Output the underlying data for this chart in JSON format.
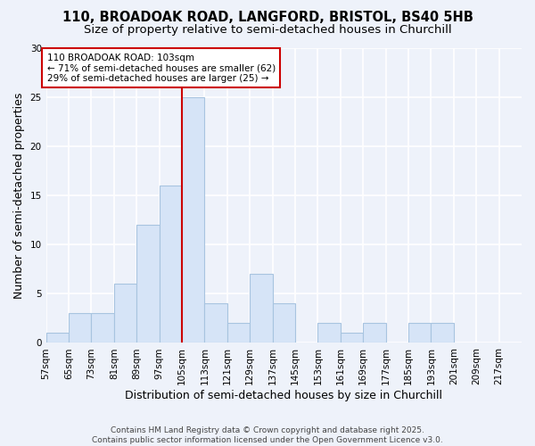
{
  "title_line1": "110, BROADOAK ROAD, LANGFORD, BRISTOL, BS40 5HB",
  "title_line2": "Size of property relative to semi-detached houses in Churchill",
  "xlabel": "Distribution of semi-detached houses by size in Churchill",
  "ylabel": "Number of semi-detached properties",
  "bin_labels": [
    "57sqm",
    "65sqm",
    "73sqm",
    "81sqm",
    "89sqm",
    "97sqm",
    "105sqm",
    "113sqm",
    "121sqm",
    "129sqm",
    "137sqm",
    "145sqm",
    "153sqm",
    "161sqm",
    "169sqm",
    "177sqm",
    "185sqm",
    "193sqm",
    "201sqm",
    "209sqm",
    "217sqm"
  ],
  "bar_values": [
    1,
    3,
    3,
    6,
    12,
    16,
    25,
    4,
    2,
    7,
    4,
    0,
    2,
    1,
    2,
    0,
    2,
    2,
    0,
    0,
    0
  ],
  "bar_color": "#d6e4f7",
  "bar_edge_color": "#a8c4e0",
  "property_line_x": 105,
  "property_line_color": "#cc0000",
  "annotation_text": "110 BROADOAK ROAD: 103sqm\n← 71% of semi-detached houses are smaller (62)\n29% of semi-detached houses are larger (25) →",
  "annotation_box_color": "#ffffff",
  "annotation_box_edge": "#cc0000",
  "ylim": [
    0,
    30
  ],
  "yticks": [
    0,
    5,
    10,
    15,
    20,
    25,
    30
  ],
  "footnote": "Contains HM Land Registry data © Crown copyright and database right 2025.\nContains public sector information licensed under the Open Government Licence v3.0.",
  "bg_color": "#eef2fa",
  "plot_bg_color": "#eef2fa",
  "grid_color": "#ffffff",
  "title_fontsize": 10.5,
  "subtitle_fontsize": 9.5,
  "axis_label_fontsize": 9,
  "tick_fontsize": 7.5,
  "annotation_fontsize": 7.5,
  "footnote_fontsize": 6.5
}
